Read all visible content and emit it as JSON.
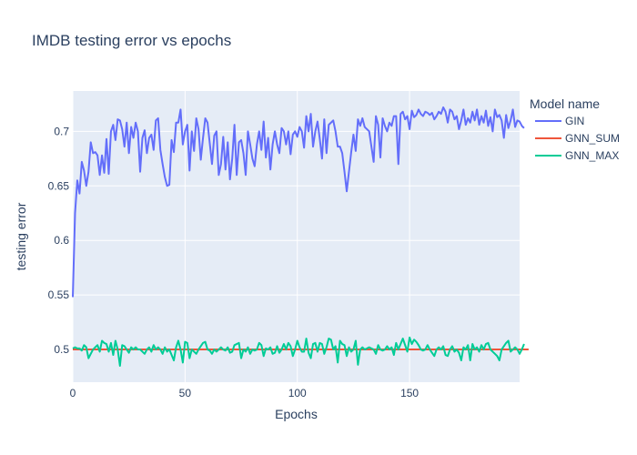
{
  "chart_data": {
    "type": "line",
    "title": "IMDB testing error vs epochs",
    "xlabel": "Epochs",
    "ylabel": "testing error",
    "xlim": [
      0,
      199
    ],
    "ylim": [
      0.47,
      0.737
    ],
    "xticks": [
      0,
      50,
      100,
      150
    ],
    "yticks": [
      0.5,
      0.55,
      0.6,
      0.65,
      0.7
    ],
    "ytick_labels": [
      "0.5",
      "0.55",
      "0.6",
      "0.65",
      "0.7"
    ],
    "grid": true,
    "legend_title": "Model name",
    "legend_position": "right",
    "series": [
      {
        "name": "GIN",
        "color": "#636efa",
        "values": [
          0.548,
          0.625,
          0.655,
          0.643,
          0.672,
          0.664,
          0.65,
          0.663,
          0.69,
          0.68,
          0.681,
          0.678,
          0.66,
          0.678,
          0.662,
          0.693,
          0.661,
          0.7,
          0.706,
          0.692,
          0.711,
          0.71,
          0.702,
          0.686,
          0.708,
          0.68,
          0.704,
          0.694,
          0.708,
          0.7,
          0.663,
          0.694,
          0.701,
          0.68,
          0.694,
          0.697,
          0.683,
          0.71,
          0.712,
          0.683,
          0.67,
          0.658,
          0.65,
          0.651,
          0.692,
          0.681,
          0.708,
          0.708,
          0.72,
          0.688,
          0.7,
          0.706,
          0.664,
          0.7,
          0.682,
          0.712,
          0.702,
          0.674,
          0.694,
          0.712,
          0.708,
          0.689,
          0.67,
          0.696,
          0.7,
          0.66,
          0.67,
          0.695,
          0.665,
          0.69,
          0.656,
          0.675,
          0.706,
          0.66,
          0.69,
          0.692,
          0.68,
          0.66,
          0.7,
          0.688,
          0.675,
          0.668,
          0.688,
          0.7,
          0.683,
          0.709,
          0.676,
          0.694,
          0.665,
          0.688,
          0.7,
          0.688,
          0.68,
          0.703,
          0.7,
          0.688,
          0.7,
          0.679,
          0.697,
          0.7,
          0.695,
          0.704,
          0.7,
          0.685,
          0.714,
          0.7,
          0.716,
          0.686,
          0.7,
          0.709,
          0.693,
          0.675,
          0.711,
          0.68,
          0.706,
          0.708,
          0.71,
          0.7,
          0.686,
          0.686,
          0.68,
          0.663,
          0.645,
          0.663,
          0.681,
          0.697,
          0.682,
          0.711,
          0.705,
          0.712,
          0.704,
          0.702,
          0.7,
          0.686,
          0.672,
          0.714,
          0.706,
          0.676,
          0.712,
          0.705,
          0.7,
          0.708,
          0.705,
          0.714,
          0.714,
          0.67,
          0.716,
          0.718,
          0.711,
          0.714,
          0.702,
          0.719,
          0.713,
          0.715,
          0.72,
          0.716,
          0.714,
          0.718,
          0.717,
          0.715,
          0.717,
          0.711,
          0.714,
          0.718,
          0.716,
          0.722,
          0.718,
          0.708,
          0.72,
          0.718,
          0.711,
          0.714,
          0.702,
          0.71,
          0.72,
          0.706,
          0.712,
          0.708,
          0.718,
          0.71,
          0.72,
          0.706,
          0.714,
          0.708,
          0.719,
          0.705,
          0.713,
          0.7,
          0.72,
          0.713,
          0.715,
          0.71,
          0.694,
          0.715,
          0.703,
          0.71,
          0.72,
          0.704,
          0.71,
          0.709,
          0.705,
          0.703
        ]
      },
      {
        "name": "GNN_SUM",
        "color": "#ef553b",
        "values": [
          0.5,
          0.5,
          0.5,
          0.5,
          0.5,
          0.5,
          0.5,
          0.5,
          0.5,
          0.5,
          0.5,
          0.5,
          0.5,
          0.5,
          0.5,
          0.5,
          0.5,
          0.5,
          0.5,
          0.5,
          0.5,
          0.5,
          0.5,
          0.5,
          0.5,
          0.5,
          0.5,
          0.5,
          0.5,
          0.5,
          0.5,
          0.5,
          0.5,
          0.5,
          0.5,
          0.5,
          0.5,
          0.5,
          0.5,
          0.5,
          0.5,
          0.5,
          0.5,
          0.5,
          0.5,
          0.5,
          0.5,
          0.5,
          0.5,
          0.5,
          0.5,
          0.5,
          0.5,
          0.5,
          0.5,
          0.5,
          0.5,
          0.5,
          0.5,
          0.5,
          0.5,
          0.5,
          0.5,
          0.5,
          0.5,
          0.5,
          0.5,
          0.5,
          0.5,
          0.5,
          0.5,
          0.5,
          0.5,
          0.5,
          0.5,
          0.5,
          0.5,
          0.5,
          0.5,
          0.5,
          0.5,
          0.5,
          0.5,
          0.5,
          0.5,
          0.5,
          0.5,
          0.5,
          0.5,
          0.5,
          0.5,
          0.5,
          0.5,
          0.5,
          0.5,
          0.5,
          0.5,
          0.5,
          0.5,
          0.5,
          0.5,
          0.5,
          0.5,
          0.5,
          0.5,
          0.5,
          0.5,
          0.5,
          0.5,
          0.5,
          0.5,
          0.5,
          0.5,
          0.5,
          0.5,
          0.5,
          0.5,
          0.5,
          0.5,
          0.5,
          0.5,
          0.5,
          0.5,
          0.5,
          0.5,
          0.5,
          0.5,
          0.5,
          0.5,
          0.5,
          0.5,
          0.5,
          0.5,
          0.5,
          0.5,
          0.5,
          0.5,
          0.5,
          0.5,
          0.5,
          0.5,
          0.5,
          0.5,
          0.5,
          0.5,
          0.5,
          0.5,
          0.5,
          0.5,
          0.5,
          0.5,
          0.5,
          0.5,
          0.5,
          0.5,
          0.5,
          0.5,
          0.5,
          0.5,
          0.5,
          0.5,
          0.5,
          0.5,
          0.5,
          0.5,
          0.5,
          0.5,
          0.5,
          0.5,
          0.5,
          0.5,
          0.5,
          0.5,
          0.5,
          0.5,
          0.5,
          0.5,
          0.5,
          0.5,
          0.5,
          0.5,
          0.5,
          0.5,
          0.5,
          0.5,
          0.5,
          0.5,
          0.5,
          0.5,
          0.5,
          0.5,
          0.5,
          0.5,
          0.5,
          0.5,
          0.5,
          0.5,
          0.5,
          0.5,
          0.5,
          0.5,
          0.5,
          0.5,
          0.5
        ]
      },
      {
        "name": "GNN_MAX",
        "color": "#00cc96",
        "values": [
          0.501,
          0.502,
          0.501,
          0.501,
          0.499,
          0.504,
          0.502,
          0.492,
          0.496,
          0.5,
          0.502,
          0.504,
          0.498,
          0.508,
          0.506,
          0.505,
          0.498,
          0.506,
          0.495,
          0.508,
          0.5,
          0.485,
          0.504,
          0.503,
          0.5,
          0.497,
          0.502,
          0.5,
          0.502,
          0.5,
          0.5,
          0.498,
          0.496,
          0.5,
          0.502,
          0.498,
          0.504,
          0.5,
          0.502,
          0.5,
          0.496,
          0.502,
          0.498,
          0.5,
          0.495,
          0.49,
          0.502,
          0.508,
          0.5,
          0.488,
          0.507,
          0.506,
          0.492,
          0.5,
          0.498,
          0.496,
          0.5,
          0.503,
          0.506,
          0.507,
          0.5,
          0.499,
          0.496,
          0.5,
          0.498,
          0.5,
          0.502,
          0.5,
          0.499,
          0.502,
          0.497,
          0.498,
          0.504,
          0.505,
          0.506,
          0.492,
          0.5,
          0.498,
          0.502,
          0.496,
          0.5,
          0.499,
          0.5,
          0.506,
          0.504,
          0.494,
          0.501,
          0.5,
          0.502,
          0.496,
          0.497,
          0.503,
          0.497,
          0.5,
          0.505,
          0.5,
          0.506,
          0.503,
          0.494,
          0.5,
          0.508,
          0.502,
          0.498,
          0.498,
          0.51,
          0.497,
          0.492,
          0.505,
          0.506,
          0.498,
          0.506,
          0.505,
          0.496,
          0.502,
          0.51,
          0.509,
          0.5,
          0.503,
          0.488,
          0.508,
          0.505,
          0.504,
          0.494,
          0.502,
          0.498,
          0.5,
          0.508,
          0.486,
          0.5,
          0.502,
          0.5,
          0.501,
          0.502,
          0.501,
          0.5,
          0.496,
          0.504,
          0.5,
          0.499,
          0.5,
          0.503,
          0.5,
          0.502,
          0.495,
          0.506,
          0.5,
          0.505,
          0.51,
          0.504,
          0.498,
          0.511,
          0.505,
          0.509,
          0.507,
          0.504,
          0.5,
          0.499,
          0.5,
          0.504,
          0.5,
          0.497,
          0.494,
          0.5,
          0.502,
          0.5,
          0.503,
          0.495,
          0.494,
          0.5,
          0.503,
          0.498,
          0.5,
          0.497,
          0.49,
          0.502,
          0.5,
          0.504,
          0.49,
          0.505,
          0.5,
          0.502,
          0.498,
          0.504,
          0.5,
          0.505,
          0.506,
          0.5,
          0.498,
          0.496,
          0.494,
          0.49,
          0.5,
          0.503,
          0.506,
          0.508,
          0.498,
          0.5,
          0.502,
          0.5,
          0.496,
          0.5,
          0.505
        ]
      }
    ]
  }
}
